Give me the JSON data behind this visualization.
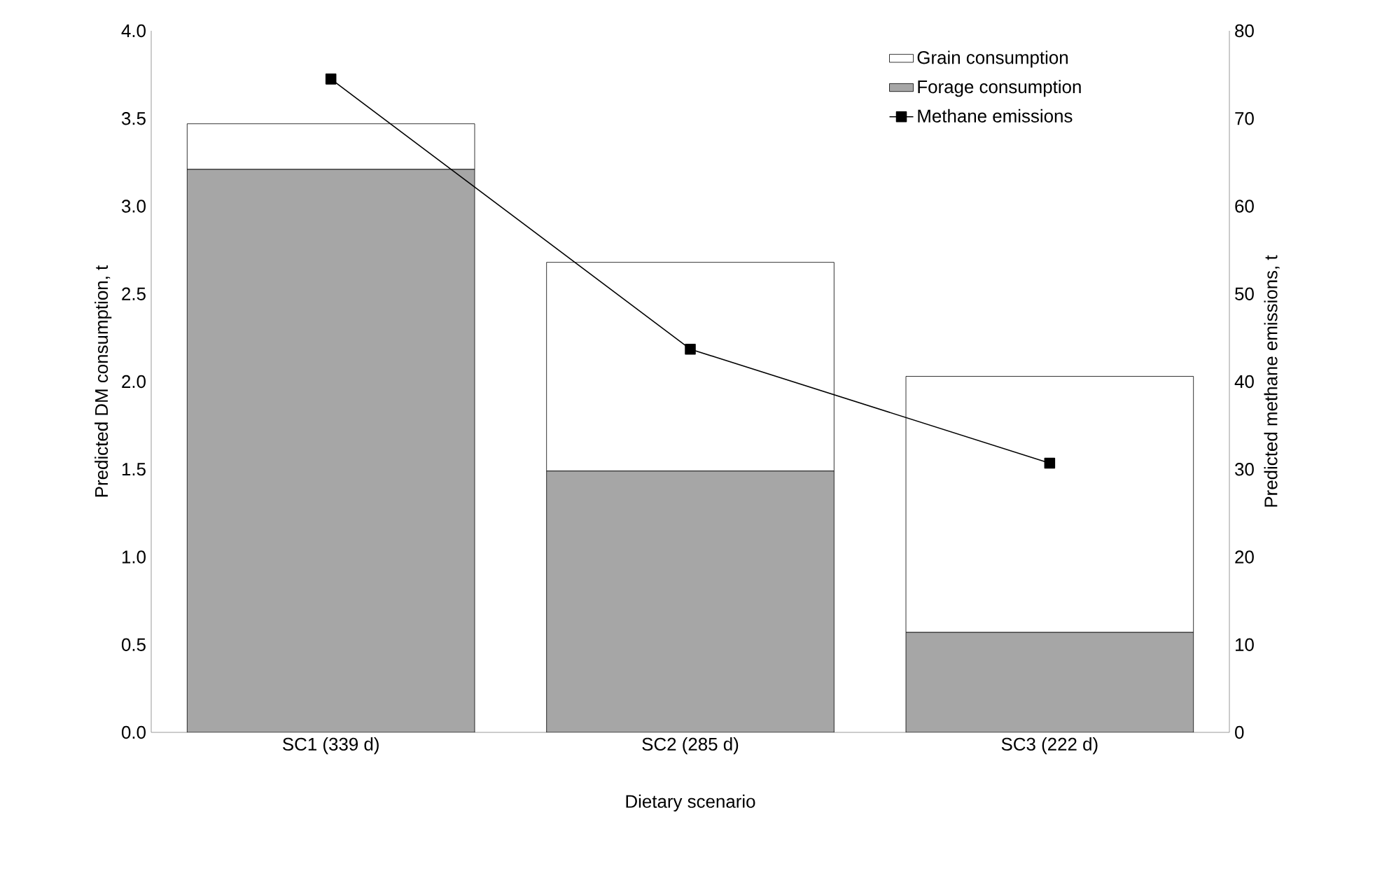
{
  "chart_data": {
    "type": "bar",
    "stacked": true,
    "categories": [
      "SC1 (339 d)",
      "SC2 (285 d)",
      "SC3 (222 d)"
    ],
    "xlabel": "Dietary scenario",
    "ylabel": "Predicted DM consumption, t",
    "y2label": "Predicted methane emissions, t",
    "series": [
      {
        "name": "Forage consumption",
        "color": "#a6a6a6",
        "values": [
          3.21,
          1.49,
          0.57
        ]
      },
      {
        "name": "Grain consumption",
        "color": "#ffffff",
        "values": [
          0.26,
          1.19,
          1.46
        ]
      },
      {
        "name": "Methane emissions",
        "type": "line",
        "axis": "y2",
        "color": "#000000",
        "marker": "square",
        "values": [
          74.5,
          43.7,
          30.7
        ]
      }
    ],
    "ylim": [
      0,
      4
    ],
    "yticks": [
      {
        "value": 0,
        "label": "0.0"
      },
      {
        "value": 0.5,
        "label": "0.5"
      },
      {
        "value": 1,
        "label": "1.0"
      },
      {
        "value": 1.5,
        "label": "1.5"
      },
      {
        "value": 2,
        "label": "2.0"
      },
      {
        "value": 2.5,
        "label": "2.5"
      },
      {
        "value": 3,
        "label": "3.0"
      },
      {
        "value": 3.5,
        "label": "3.5"
      },
      {
        "value": 4,
        "label": "4.0"
      }
    ],
    "y2lim": [
      0,
      80
    ],
    "y2ticks": [
      0,
      10,
      20,
      30,
      40,
      50,
      60,
      70,
      80
    ],
    "legend": "top right"
  }
}
